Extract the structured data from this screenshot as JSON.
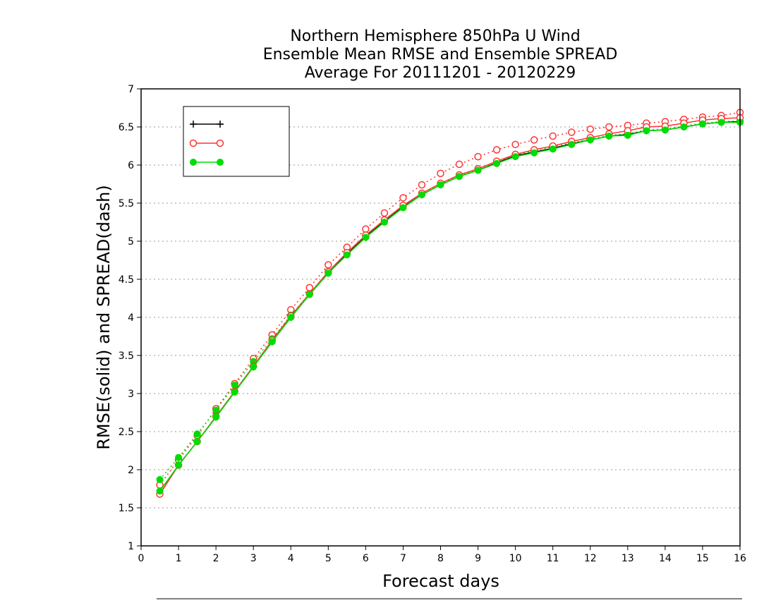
{
  "chart_data": {
    "type": "line",
    "title_lines": [
      "Northern Hemisphere 850hPa U Wind",
      "Ensemble Mean RMSE and Ensemble SPREAD",
      "Average For 20111201 - 20120229"
    ],
    "xlabel": "Forecast days",
    "ylabel": "RMSE(solid) and SPREAD(dash)",
    "xlim": [
      0,
      16
    ],
    "ylim": [
      1,
      7
    ],
    "x_ticks": [
      "0",
      "1",
      "2",
      "3",
      "4",
      "5",
      "6",
      "7",
      "8",
      "9",
      "10",
      "11",
      "12",
      "13",
      "14",
      "15",
      "16"
    ],
    "y_ticks": [
      "1",
      "1.5",
      "2",
      "2.5",
      "3",
      "3.5",
      "4",
      "4.5",
      "5",
      "5.5",
      "6",
      "6.5",
      "7"
    ],
    "grid": "horizontal dotted",
    "legend_position": "top-left",
    "x": [
      0.5,
      1,
      1.5,
      2,
      2.5,
      3,
      3.5,
      4,
      4.5,
      5,
      5.5,
      6,
      6.5,
      7,
      7.5,
      8,
      8.5,
      9,
      9.5,
      10,
      10.5,
      11,
      11.5,
      12,
      12.5,
      13,
      13.5,
      14,
      14.5,
      15,
      15.5,
      16
    ],
    "series": [
      {
        "name": "",
        "color": "#000000",
        "marker": "plus",
        "rmse": [
          1.68,
          2.06,
          2.37,
          2.69,
          3.02,
          3.35,
          3.68,
          4.0,
          4.3,
          4.58,
          4.83,
          5.06,
          5.26,
          5.45,
          5.61,
          5.74,
          5.85,
          5.93,
          6.03,
          6.12,
          6.17,
          6.22,
          6.28,
          6.33,
          6.38,
          6.4,
          6.45,
          6.46,
          6.5,
          6.54,
          6.56,
          6.57
        ],
        "spread": []
      },
      {
        "name": "",
        "color": "#ff3333",
        "marker": "open-circle",
        "rmse": [
          1.68,
          2.06,
          2.37,
          2.7,
          3.03,
          3.36,
          3.7,
          4.02,
          4.31,
          4.6,
          4.85,
          5.08,
          5.28,
          5.47,
          5.63,
          5.76,
          5.87,
          5.95,
          6.05,
          6.14,
          6.2,
          6.25,
          6.31,
          6.36,
          6.41,
          6.45,
          6.5,
          6.51,
          6.55,
          6.59,
          6.61,
          6.62
        ],
        "spread": [
          1.8,
          2.13,
          2.45,
          2.8,
          3.13,
          3.46,
          3.77,
          4.1,
          4.39,
          4.69,
          4.92,
          5.16,
          5.37,
          5.57,
          5.74,
          5.89,
          6.01,
          6.11,
          6.2,
          6.27,
          6.33,
          6.38,
          6.43,
          6.47,
          6.5,
          6.52,
          6.55,
          6.57,
          6.6,
          6.63,
          6.65,
          6.69
        ]
      },
      {
        "name": "",
        "color": "#00dd00",
        "marker": "filled-circle",
        "rmse": [
          1.72,
          2.06,
          2.37,
          2.69,
          3.02,
          3.35,
          3.68,
          4.0,
          4.3,
          4.58,
          4.82,
          5.05,
          5.25,
          5.44,
          5.61,
          5.74,
          5.85,
          5.93,
          6.02,
          6.11,
          6.16,
          6.21,
          6.27,
          6.33,
          6.38,
          6.39,
          6.45,
          6.46,
          6.5,
          6.54,
          6.56,
          6.56
        ],
        "spread": [
          1.87,
          2.16,
          2.47,
          2.78,
          3.11,
          3.42,
          3.72,
          4.03,
          4.31,
          4.6,
          4.84,
          5.06,
          5.26,
          5.45,
          5.61,
          5.75,
          5.86,
          5.95,
          6.05,
          6.13,
          6.19,
          6.24,
          6.29,
          6.34,
          6.39,
          6.41,
          6.46,
          6.47,
          6.51,
          6.55,
          6.57,
          6.58
        ]
      }
    ]
  }
}
